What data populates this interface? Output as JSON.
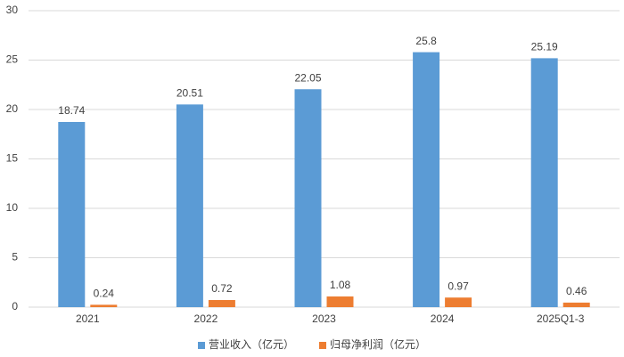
{
  "chart_data": {
    "type": "bar",
    "categories": [
      "2021",
      "2022",
      "2023",
      "2024",
      "2025Q1-3"
    ],
    "series": [
      {
        "name": "营业收入（亿元）",
        "color": "#5b9bd5",
        "values": [
          18.74,
          20.51,
          22.05,
          25.8,
          25.19
        ]
      },
      {
        "name": "归母净利润（亿元）",
        "color": "#ed7d31",
        "values": [
          0.24,
          0.72,
          1.08,
          0.97,
          0.46
        ]
      }
    ],
    "ylim": [
      0,
      30
    ],
    "yticks": [
      0,
      5,
      10,
      15,
      20,
      25,
      30
    ],
    "grid": true,
    "legend": "bottom"
  }
}
